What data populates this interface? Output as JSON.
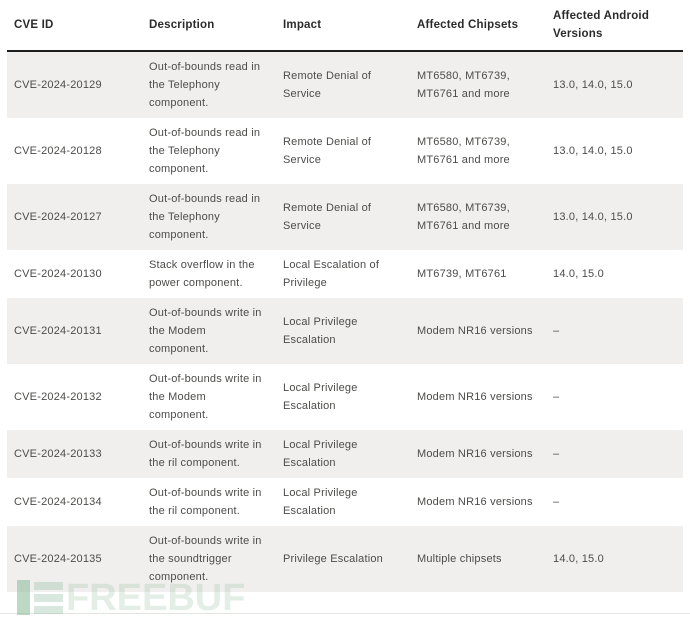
{
  "colors": {
    "header_text": "#2b2b2b",
    "body_text": "#4c4c4a",
    "row_stripe": "#f0efee",
    "header_border": "#1e1e1e",
    "watermark_green": "#89b898"
  },
  "table": {
    "columns": [
      "CVE ID",
      "Description",
      "Impact",
      "Affected Chipsets",
      "Affected Android Versions"
    ],
    "rows": [
      {
        "cve_id": "CVE-2024-20129",
        "description": "Out-of-bounds read in the Telephony component.",
        "impact": "Remote Denial of Service",
        "chipsets": "MT6580, MT6739, MT6761 and more",
        "android_versions": "13.0, 14.0, 15.0"
      },
      {
        "cve_id": "CVE-2024-20128",
        "description": "Out-of-bounds read in the Telephony component.",
        "impact": "Remote Denial of Service",
        "chipsets": "MT6580, MT6739, MT6761 and more",
        "android_versions": "13.0, 14.0, 15.0"
      },
      {
        "cve_id": "CVE-2024-20127",
        "description": "Out-of-bounds read in the Telephony component.",
        "impact": "Remote Denial of Service",
        "chipsets": "MT6580, MT6739, MT6761 and more",
        "android_versions": "13.0, 14.0, 15.0"
      },
      {
        "cve_id": "CVE-2024-20130",
        "description": "Stack overflow in the power component.",
        "impact": "Local Escalation of Privilege",
        "chipsets": "MT6739, MT6761",
        "android_versions": "14.0, 15.0"
      },
      {
        "cve_id": "CVE-2024-20131",
        "description": "Out-of-bounds write in the Modem component.",
        "impact": "Local Privilege Escalation",
        "chipsets": "Modem NR16 versions",
        "android_versions": "–"
      },
      {
        "cve_id": "CVE-2024-20132",
        "description": "Out-of-bounds write in the Modem component.",
        "impact": "Local Privilege Escalation",
        "chipsets": "Modem NR16 versions",
        "android_versions": "–"
      },
      {
        "cve_id": "CVE-2024-20133",
        "description": "Out-of-bounds write in the ril component.",
        "impact": "Local Privilege Escalation",
        "chipsets": "Modem NR16 versions",
        "android_versions": "–"
      },
      {
        "cve_id": "CVE-2024-20134",
        "description": "Out-of-bounds write in the ril component.",
        "impact": "Local Privilege Escalation",
        "chipsets": "Modem NR16 versions",
        "android_versions": "–"
      },
      {
        "cve_id": "CVE-2024-20135",
        "description": "Out-of-bounds write in the soundtrigger component.",
        "impact": "Privilege Escalation",
        "chipsets": "Multiple chipsets",
        "android_versions": "14.0, 15.0"
      }
    ]
  },
  "watermark": {
    "text": "FREEBUF"
  }
}
